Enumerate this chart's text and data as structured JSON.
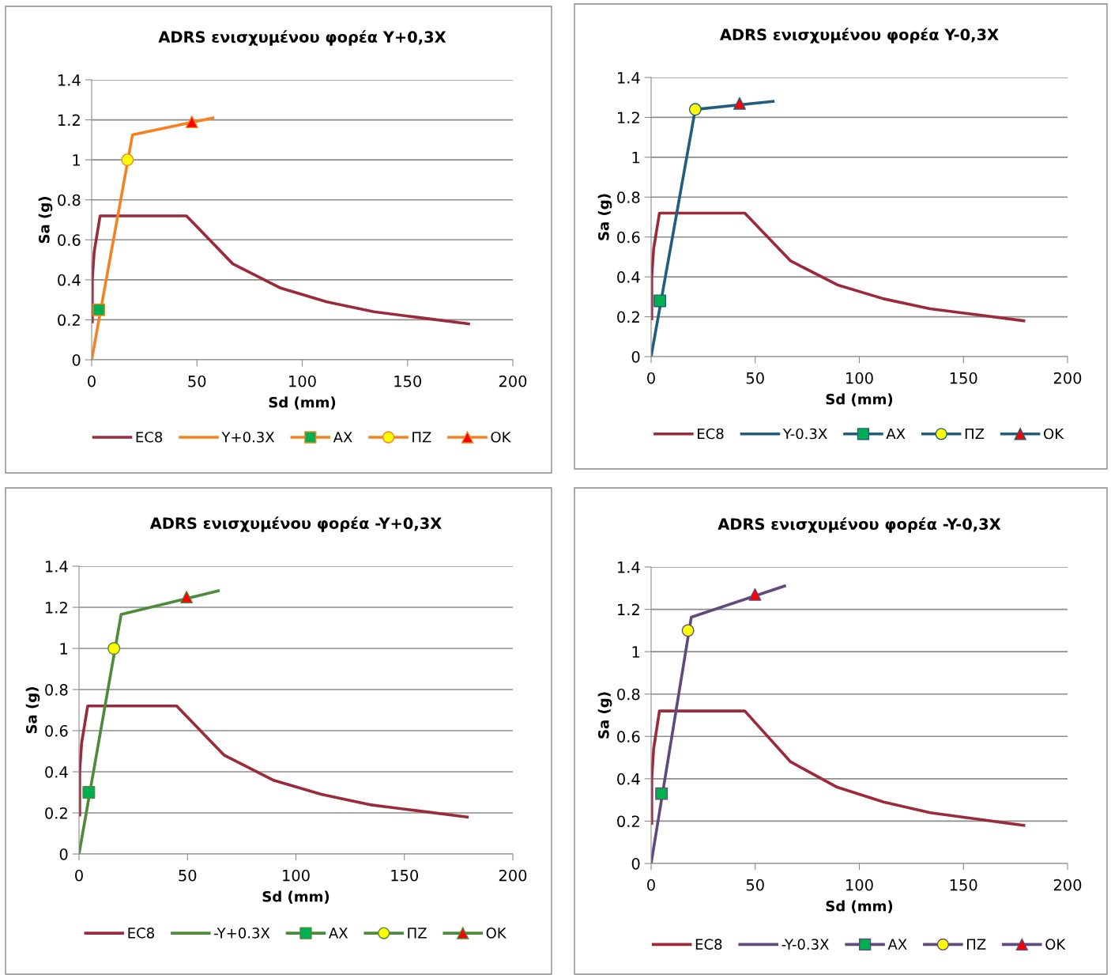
{
  "chart_data": [
    {
      "type": "line",
      "title": "ADRS ενισχυμένου φορέα Y+0,3X",
      "xlabel": "Sd (mm)",
      "ylabel": "Sa (g)",
      "xlim": [
        0,
        200
      ],
      "ylim": [
        0,
        1.4
      ],
      "xticks": [
        0,
        50,
        100,
        150,
        200
      ],
      "yticks": [
        0,
        0.2,
        0.4,
        0.6,
        0.8,
        1,
        1.2,
        1.4
      ],
      "grid": "y",
      "legend": "bottom",
      "line_style": "solid",
      "series": [
        {
          "name": "EC8",
          "color": "#9b2a3a",
          "marker": "none",
          "x": [
            0.3,
            0.3,
            1.2,
            4,
            45,
            67,
            89.4,
            111.7,
            134,
            156.4,
            179
          ],
          "values": [
            0.19,
            0.4,
            0.54,
            0.72,
            0.72,
            0.48,
            0.36,
            0.29,
            0.24,
            0.21,
            0.18
          ]
        },
        {
          "name": "Y+0.3X",
          "color": "#f58220",
          "marker": "none",
          "x": [
            0,
            19.4,
            57.6
          ],
          "values": [
            0,
            1.125,
            1.21
          ]
        },
        {
          "name": "ΑΧ",
          "type": "scatter",
          "color": "#00b050",
          "marker": "square",
          "x": [
            3.4
          ],
          "values": [
            0.25
          ]
        },
        {
          "name": "ΠΖ",
          "type": "scatter",
          "color": "#ffff00",
          "marker": "circle",
          "x": [
            17
          ],
          "values": [
            1.0
          ]
        },
        {
          "name": "ΟΚ",
          "type": "scatter",
          "color": "#ff0000",
          "marker": "triangle",
          "x": [
            47.6
          ],
          "values": [
            1.19
          ]
        }
      ]
    },
    {
      "type": "line",
      "title": "ADRS ενισχυμένου φορέα Y-0,3X",
      "xlabel": "Sd (mm)",
      "ylabel": "Sa (g)",
      "xlim": [
        0,
        200
      ],
      "ylim": [
        0,
        1.4
      ],
      "xticks": [
        0,
        50,
        100,
        150,
        200
      ],
      "yticks": [
        0,
        0.2,
        0.4,
        0.6,
        0.8,
        1,
        1.2,
        1.4
      ],
      "grid": "y",
      "legend": "bottom",
      "line_style": "solid",
      "series": [
        {
          "name": "EC8",
          "color": "#9b2a3a",
          "marker": "none",
          "x": [
            0.3,
            0.3,
            1.2,
            4,
            45,
            67,
            89.4,
            111.7,
            134,
            156.4,
            179
          ],
          "values": [
            0.19,
            0.4,
            0.54,
            0.72,
            0.72,
            0.48,
            0.36,
            0.29,
            0.24,
            0.21,
            0.18
          ]
        },
        {
          "name": "Y-0.3X",
          "color": "#215e7e",
          "marker": "none",
          "x": [
            0,
            21.2,
            58.6
          ],
          "values": [
            0,
            1.24,
            1.28
          ]
        },
        {
          "name": "ΑΧ",
          "type": "scatter",
          "color": "#00b050",
          "marker": "square",
          "x": [
            4.2
          ],
          "values": [
            0.28
          ]
        },
        {
          "name": "ΠΖ",
          "type": "scatter",
          "color": "#ffff00",
          "marker": "circle",
          "x": [
            21.2
          ],
          "values": [
            1.24
          ]
        },
        {
          "name": "ΟΚ",
          "type": "scatter",
          "color": "#ff0000",
          "marker": "triangle",
          "x": [
            42.5
          ],
          "values": [
            1.27
          ]
        }
      ]
    },
    {
      "type": "line",
      "title": "ADRS ενισχυμένου φορέα -Y+0,3X",
      "xlabel": "Sd (mm)",
      "ylabel": "Sa (g)",
      "xlim": [
        0,
        200
      ],
      "ylim": [
        0,
        1.4
      ],
      "xticks": [
        0,
        50,
        100,
        150,
        200
      ],
      "yticks": [
        0,
        0.2,
        0.4,
        0.6,
        0.8,
        1,
        1.2,
        1.4
      ],
      "grid": "y",
      "legend": "bottom",
      "line_style": "solid",
      "series": [
        {
          "name": "EC8",
          "color": "#9b2a3a",
          "marker": "none",
          "x": [
            0.3,
            0.3,
            1.2,
            4,
            45,
            67,
            89.4,
            111.7,
            134,
            156.4,
            179
          ],
          "values": [
            0.19,
            0.4,
            0.54,
            0.72,
            0.72,
            0.48,
            0.36,
            0.29,
            0.24,
            0.21,
            0.18
          ]
        },
        {
          "name": "-Y+0.3X",
          "color": "#4e8a3c",
          "marker": "none",
          "x": [
            0,
            19.4,
            64.2
          ],
          "values": [
            0,
            1.165,
            1.28
          ]
        },
        {
          "name": "ΑΧ",
          "type": "scatter",
          "color": "#00b050",
          "marker": "square",
          "x": [
            4.5
          ],
          "values": [
            0.3
          ]
        },
        {
          "name": "ΠΖ",
          "type": "scatter",
          "color": "#ffff00",
          "marker": "circle",
          "x": [
            16.1
          ],
          "values": [
            1.0
          ]
        },
        {
          "name": "ΟΚ",
          "type": "scatter",
          "color": "#ff0000",
          "marker": "triangle",
          "x": [
            49.6
          ],
          "values": [
            1.25
          ]
        }
      ]
    },
    {
      "type": "line",
      "title": "ADRS ενισχυμένου φορέα -Y-0,3X",
      "xlabel": "Sd (mm)",
      "ylabel": "Sa (g)",
      "xlim": [
        0,
        200
      ],
      "ylim": [
        0,
        1.4
      ],
      "xticks": [
        0,
        50,
        100,
        150,
        200
      ],
      "yticks": [
        0,
        0.2,
        0.4,
        0.6,
        0.8,
        1,
        1.2,
        1.4
      ],
      "grid": "y",
      "legend": "bottom",
      "line_style": "solid",
      "series": [
        {
          "name": "EC8",
          "color": "#9b2a3a",
          "marker": "none",
          "x": [
            0.3,
            0.3,
            1.2,
            4,
            45,
            67,
            89.4,
            111.7,
            134,
            156.4,
            179
          ],
          "values": [
            0.19,
            0.4,
            0.54,
            0.72,
            0.72,
            0.48,
            0.36,
            0.29,
            0.24,
            0.21,
            0.18
          ]
        },
        {
          "name": "-Y-0.3X",
          "color": "#604a7b",
          "marker": "none",
          "x": [
            0,
            19.3,
            64.1
          ],
          "values": [
            0,
            1.163,
            1.31
          ]
        },
        {
          "name": "ΑΧ",
          "type": "scatter",
          "color": "#00b050",
          "marker": "square",
          "x": [
            5.0
          ],
          "values": [
            0.33
          ]
        },
        {
          "name": "ΠΖ",
          "type": "scatter",
          "color": "#ffff00",
          "marker": "circle",
          "x": [
            17.7
          ],
          "values": [
            1.1
          ]
        },
        {
          "name": "ΟΚ",
          "type": "scatter",
          "color": "#ff0000",
          "marker": "triangle",
          "x": [
            49.9
          ],
          "values": [
            1.27
          ]
        }
      ]
    }
  ]
}
